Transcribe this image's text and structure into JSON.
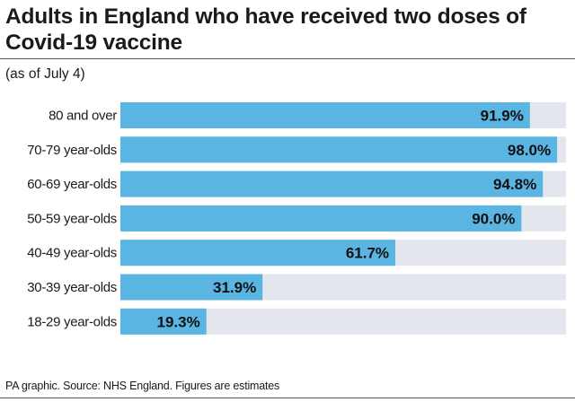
{
  "header": {
    "title": "Adults in England who have received two doses of Covid-19 vaccine",
    "subtitle": "(as of July 4)"
  },
  "footer": {
    "source": "PA graphic. Source: NHS England. Figures are estimates"
  },
  "colors": {
    "bar": "#5ab5e2",
    "track": "#e4e6ee",
    "text": "#1a1a1a"
  },
  "chart_data": {
    "type": "bar",
    "orientation": "horizontal",
    "title": "Adults in England who have received two doses of Covid-19 vaccine",
    "subtitle": "(as of July 4)",
    "categories": [
      "80 and over",
      "70-79 year-olds",
      "60-69 year-olds",
      "50-59 year-olds",
      "40-49 year-olds",
      "30-39 year-olds",
      "18-29 year-olds"
    ],
    "values": [
      91.9,
      98.0,
      94.8,
      90.0,
      61.7,
      31.9,
      19.3
    ],
    "value_labels": [
      "91.9%",
      "98.0%",
      "94.8%",
      "90.0%",
      "61.7%",
      "31.9%",
      "19.3%"
    ],
    "xlim": [
      0,
      100
    ],
    "unit": "%",
    "xlabel": "",
    "ylabel": ""
  }
}
